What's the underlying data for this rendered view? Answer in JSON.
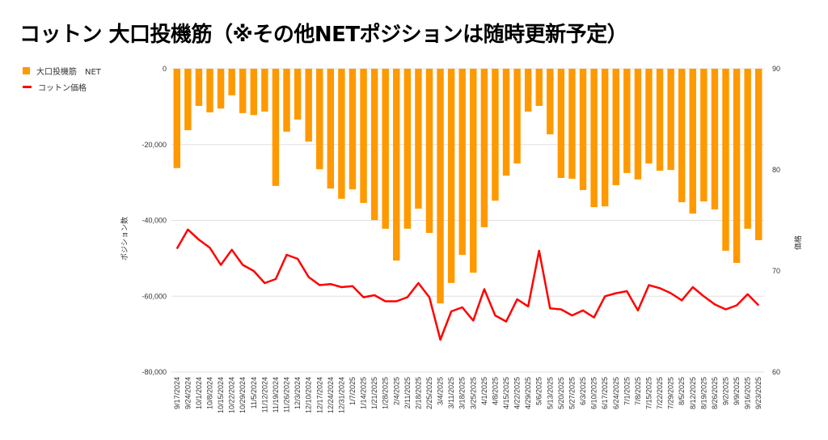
{
  "title": "コットン 大口投機筋（※その他NETポジションは随時更新予定）",
  "colors": {
    "bars": "#FF9900",
    "line": "#FF0000",
    "grid": "#e0e0e0"
  },
  "chart_data": {
    "type": "bar+line",
    "title": "コットン 大口投機筋（※その他NETポジションは随時更新予定）",
    "legend_position": "top-left",
    "legend": [
      "大口投機筋　NET",
      "コットン価格"
    ],
    "ylabel_left": "ポジション数",
    "ylabel_right": "価格",
    "ylim_left": [
      -80000,
      0
    ],
    "ylim_right": [
      60,
      90
    ],
    "yticks_left": [
      0,
      -20000,
      -40000,
      -60000,
      -80000
    ],
    "yticks_left_labels": [
      "0",
      "-20,000",
      "-40,000",
      "-60,000",
      "-80,000"
    ],
    "yticks_right": [
      90,
      80,
      70,
      60
    ],
    "yticks_right_labels": [
      "90",
      "80",
      "70",
      "60"
    ],
    "categories": [
      "9/17/2024",
      "9/24/2024",
      "10/1/2024",
      "10/8/2024",
      "10/15/2024",
      "10/22/2024",
      "10/29/2024",
      "11/5/2024",
      "11/12/2024",
      "11/19/2024",
      "11/26/2024",
      "12/3/2024",
      "12/10/2024",
      "12/17/2024",
      "12/24/2024",
      "12/31/2024",
      "1/7/2025",
      "1/14/2025",
      "1/21/2025",
      "1/28/2025",
      "2/4/2025",
      "2/11/2025",
      "2/18/2025",
      "2/25/2025",
      "3/4/2025",
      "3/11/2025",
      "3/18/2025",
      "3/25/2025",
      "4/1/2025",
      "4/8/2025",
      "4/15/2025",
      "4/22/2025",
      "4/29/2025",
      "5/6/2025",
      "5/13/2025",
      "5/20/2025",
      "5/27/2025",
      "6/3/2025",
      "6/10/2025",
      "6/17/2025",
      "6/24/2025",
      "7/1/2025",
      "7/8/2025",
      "7/15/2025",
      "7/22/2025",
      "7/29/2025",
      "8/5/2025",
      "8/12/2025",
      "8/19/2025",
      "8/26/2025",
      "9/2/2025",
      "9/9/2025",
      "9/16/2025",
      "9/23/2025"
    ],
    "series": [
      {
        "name": "大口投機筋　NET",
        "type": "bar",
        "axis": "left",
        "values": [
          -26200,
          -16200,
          -9800,
          -11500,
          -10500,
          -7000,
          -11700,
          -12200,
          -11300,
          -30900,
          -16600,
          -13400,
          -19200,
          -26500,
          -31600,
          -34300,
          -31800,
          -35400,
          -39900,
          -42200,
          -50600,
          -42200,
          -36900,
          -43300,
          -61900,
          -56500,
          -49100,
          -53800,
          -41800,
          -34800,
          -28200,
          -25000,
          -11300,
          -9800,
          -17300,
          -28800,
          -29000,
          -32000,
          -36500,
          -36300,
          -30700,
          -27500,
          -29200,
          -25000,
          -26900,
          -26700,
          -35200,
          -38200,
          -35000,
          -37100,
          -48000,
          -51200,
          -42200,
          -45200
        ]
      },
      {
        "name": "コットン価格",
        "type": "line",
        "axis": "right",
        "values": [
          72.2,
          74.1,
          73.1,
          72.3,
          70.6,
          72.1,
          70.6,
          70.0,
          68.8,
          69.2,
          71.6,
          71.2,
          69.4,
          68.6,
          68.7,
          68.4,
          68.5,
          67.4,
          67.6,
          67.0,
          67.0,
          67.4,
          68.8,
          67.4,
          63.2,
          66.0,
          66.4,
          65.1,
          68.2,
          65.6,
          65.0,
          67.2,
          66.5,
          72.0,
          66.3,
          66.2,
          65.6,
          66.1,
          65.4,
          67.5,
          67.8,
          68.0,
          66.1,
          68.6,
          68.3,
          67.8,
          67.1,
          68.4,
          67.5,
          66.7,
          66.2,
          66.6,
          67.7,
          66.6
        ]
      }
    ]
  }
}
